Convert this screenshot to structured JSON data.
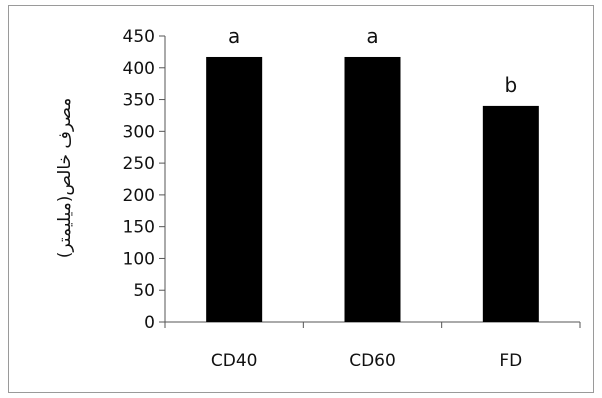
{
  "chart_data": {
    "type": "bar",
    "categories": [
      "CD40",
      "CD60",
      "FD"
    ],
    "values": [
      417,
      417,
      340
    ],
    "data_labels": [
      "a",
      "a",
      "b"
    ],
    "title": "",
    "xlabel": "",
    "ylabel": "مصرف خالص(میلیمتر)",
    "ylim": [
      0,
      450
    ],
    "yticks": [
      0,
      50,
      100,
      150,
      200,
      250,
      300,
      350,
      400,
      450
    ],
    "grid": false,
    "legend": "none",
    "bar_color": "#000000",
    "axis_color": "#555555"
  }
}
